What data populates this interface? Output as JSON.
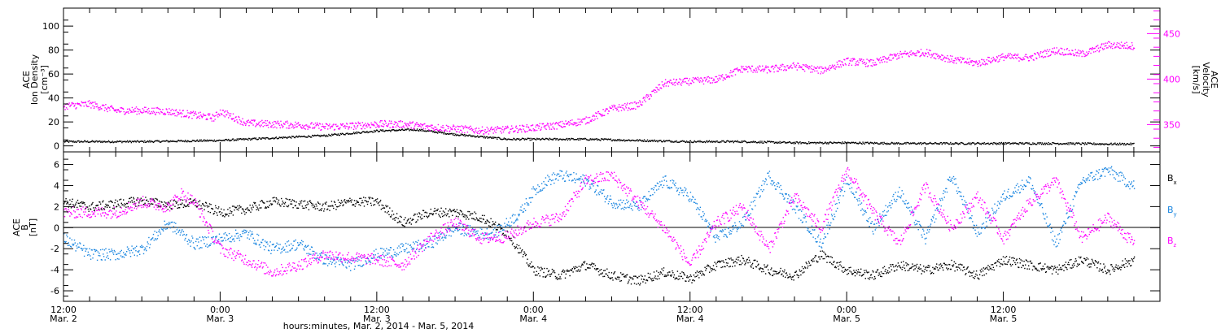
{
  "colors": {
    "black": "#000000",
    "magenta": "#ff00ff",
    "blue": "#1a86e0"
  },
  "chart_data": [
    {
      "type": "scatter",
      "panel": "top",
      "ylabel": [
        "ACE",
        "Ion Density",
        "[cm⁻³]"
      ],
      "y2label": [
        "ACE",
        "Velocity",
        "[km/s]"
      ],
      "ylim": [
        -5,
        115
      ],
      "yticks": [
        "0",
        "20",
        "40",
        "60",
        "80",
        "100"
      ],
      "y2lim": [
        320,
        478
      ],
      "y2ticks": [
        "350",
        "400",
        "450"
      ],
      "xlim": [
        0,
        84
      ],
      "series": [
        {
          "name": "density",
          "color": "black",
          "axis": "left",
          "x": [
            0,
            6,
            12,
            14,
            16,
            20,
            24,
            27,
            30,
            34,
            36,
            40,
            44,
            48,
            52,
            56,
            60,
            64,
            68,
            72,
            76,
            80,
            82
          ],
          "y": [
            4,
            4,
            5,
            6,
            7,
            9,
            13,
            14,
            10,
            6,
            6,
            6,
            5,
            4,
            4,
            3,
            3,
            2.5,
            2.5,
            2.5,
            2.5,
            2,
            2
          ]
        },
        {
          "name": "velocity",
          "color": "magenta",
          "axis": "right",
          "x": [
            0,
            2,
            4,
            6,
            8,
            10,
            11.5,
            12,
            14,
            16,
            18,
            20,
            22,
            24,
            26,
            28,
            30,
            32,
            34,
            36,
            38,
            40,
            42,
            44,
            46,
            48,
            50,
            52,
            54,
            56,
            58,
            60,
            62,
            64,
            66,
            68,
            70,
            72,
            74,
            76,
            78,
            80,
            82
          ],
          "y": [
            371,
            373,
            366,
            366,
            365,
            361,
            358,
            365,
            352,
            351,
            350,
            348,
            349,
            351,
            351,
            348,
            346,
            344,
            345,
            347,
            350,
            355,
            368,
            372,
            396,
            398,
            400,
            412,
            411,
            415,
            410,
            420,
            418,
            427,
            430,
            422,
            418,
            425,
            424,
            432,
            428,
            438,
            437
          ]
        }
      ]
    },
    {
      "type": "scatter",
      "panel": "bottom",
      "ylabel": [
        "ACE",
        "B",
        "[nT]"
      ],
      "ylim": [
        -7,
        7.2
      ],
      "yticks": [
        "-6",
        "-4",
        "-2",
        "0",
        "2",
        "4",
        "6"
      ],
      "xlim": [
        0,
        84
      ],
      "x_tick_labels": [
        {
          "x": 0,
          "time": "12:00",
          "date": "Mar. 2"
        },
        {
          "x": 12,
          "time": "0:00",
          "date": "Mar. 3"
        },
        {
          "x": 24,
          "time": "12:00",
          "date": "Mar. 3"
        },
        {
          "x": 36,
          "time": "0:00",
          "date": "Mar. 4"
        },
        {
          "x": 48,
          "time": "12:00",
          "date": "Mar. 4"
        },
        {
          "x": 60,
          "time": "0:00",
          "date": "Mar. 5"
        },
        {
          "x": 72,
          "time": "12:00",
          "date": "Mar. 5"
        }
      ],
      "xlabel": "hours:minutes, Mar. 2, 2014 - Mar. 5, 2014",
      "legend": [
        {
          "label": "B",
          "sub": "x",
          "color": "black"
        },
        {
          "label": "B",
          "sub": "y",
          "color": "blue"
        },
        {
          "label": "B",
          "sub": "z",
          "color": "magenta"
        }
      ],
      "series": [
        {
          "name": "Bx",
          "color": "black",
          "x": [
            0,
            2,
            4,
            6,
            8,
            10,
            12,
            14,
            16,
            18,
            20,
            22,
            24,
            26,
            28,
            30,
            32,
            34,
            36,
            38,
            40,
            42,
            44,
            46,
            48,
            50,
            52,
            54,
            56,
            58,
            60,
            62,
            64,
            66,
            68,
            70,
            72,
            74,
            76,
            78,
            80,
            82
          ],
          "y": [
            2.5,
            2,
            2.3,
            2.6,
            2.2,
            2.4,
            1.5,
            1.8,
            2.5,
            2.3,
            2,
            2.5,
            2.5,
            0.5,
            1.5,
            1.5,
            1,
            -0.5,
            -4,
            -4.5,
            -3.5,
            -4.5,
            -5,
            -4.2,
            -4.8,
            -3.5,
            -3,
            -4,
            -4.5,
            -2.5,
            -4,
            -4.5,
            -3.5,
            -4,
            -3.5,
            -4.5,
            -3,
            -3.5,
            -4,
            -3,
            -4,
            -3
          ]
        },
        {
          "name": "By",
          "color": "blue",
          "x": [
            0,
            2,
            4,
            6,
            8,
            9,
            10,
            12,
            14,
            16,
            18,
            20,
            22,
            24,
            26,
            28,
            30,
            32,
            33,
            35,
            36,
            37,
            38,
            40,
            42,
            44,
            46,
            48,
            50,
            52,
            54,
            56,
            58,
            60,
            62,
            64,
            66,
            68,
            70,
            72,
            74,
            76,
            78,
            80,
            82
          ],
          "y": [
            -1,
            -2.5,
            -2.5,
            -2,
            0.5,
            -0.5,
            -1.5,
            -1,
            -0.5,
            -2,
            -1.5,
            -3,
            -3.5,
            -2.5,
            -2,
            -1.5,
            0,
            -0.5,
            -0.5,
            1.5,
            3.5,
            4.5,
            5,
            4.5,
            2.5,
            2,
            4.5,
            3,
            -1,
            0.5,
            5,
            2,
            -1.5,
            4.5,
            0,
            3.5,
            -1,
            5,
            -0.5,
            3,
            4.5,
            -1.5,
            4.5,
            5.5,
            4
          ]
        },
        {
          "name": "Bz",
          "color": "magenta",
          "x": [
            0,
            2,
            4,
            6,
            8,
            9,
            10,
            12,
            14,
            16,
            18,
            20,
            22,
            24,
            26,
            28,
            30,
            32,
            34,
            36,
            38,
            40,
            42,
            44,
            46,
            48,
            50,
            52,
            54,
            56,
            58,
            60,
            62,
            64,
            66,
            68,
            70,
            72,
            74,
            76,
            78,
            80,
            82
          ],
          "y": [
            1.5,
            1.5,
            1.5,
            2.5,
            2,
            3.3,
            2.5,
            -2,
            -3,
            -4.2,
            -3.5,
            -2.5,
            -2.8,
            -3,
            -3.5,
            -1,
            0.5,
            -1,
            -0.8,
            0.5,
            1,
            4.5,
            5,
            2.5,
            0,
            -3.5,
            0.5,
            2,
            -2,
            3,
            0,
            5.5,
            1.5,
            -1.5,
            4,
            0,
            3,
            -1,
            2.5,
            4.5,
            -1,
            1,
            -1.5
          ]
        }
      ]
    }
  ]
}
